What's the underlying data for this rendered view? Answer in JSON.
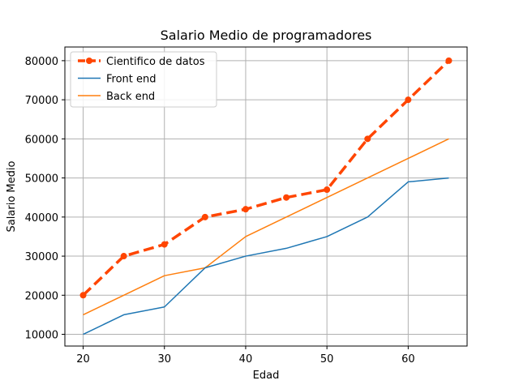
{
  "chart_data": {
    "type": "line",
    "title": "Salario Medio de programadores",
    "xlabel": "Edad",
    "ylabel": "Salario Medio",
    "xlim": [
      17.75,
      67.25
    ],
    "ylim": [
      7000,
      83500
    ],
    "xticks": [
      20,
      30,
      40,
      50,
      60
    ],
    "xtick_labels": [
      "20",
      "30",
      "40",
      "50",
      "60"
    ],
    "yticks": [
      10000,
      20000,
      30000,
      40000,
      50000,
      60000,
      70000,
      80000
    ],
    "ytick_labels": [
      "10000",
      "20000",
      "30000",
      "40000",
      "50000",
      "60000",
      "70000",
      "80000"
    ],
    "grid": true,
    "legend_position": "top-left",
    "x": [
      20,
      25,
      30,
      35,
      40,
      45,
      50,
      55,
      60,
      65
    ],
    "series": [
      {
        "name": "Cientifico de datos",
        "values": [
          20000,
          30000,
          33000,
          40000,
          42000,
          45000,
          47000,
          60000,
          70000,
          80000
        ],
        "color": "#ff4500",
        "style": "dashed",
        "marker": "circle"
      },
      {
        "name": "Front end",
        "values": [
          10000,
          15000,
          17000,
          27000,
          30000,
          32000,
          35000,
          40000,
          49000,
          50000
        ],
        "color": "#1f77b4",
        "style": "solid",
        "marker": "none"
      },
      {
        "name": "Back end",
        "values": [
          15000,
          20000,
          25000,
          27000,
          35000,
          40000,
          45000,
          50000,
          55000,
          60000
        ],
        "color": "#ff7f0e",
        "style": "solid",
        "marker": "none"
      }
    ]
  }
}
